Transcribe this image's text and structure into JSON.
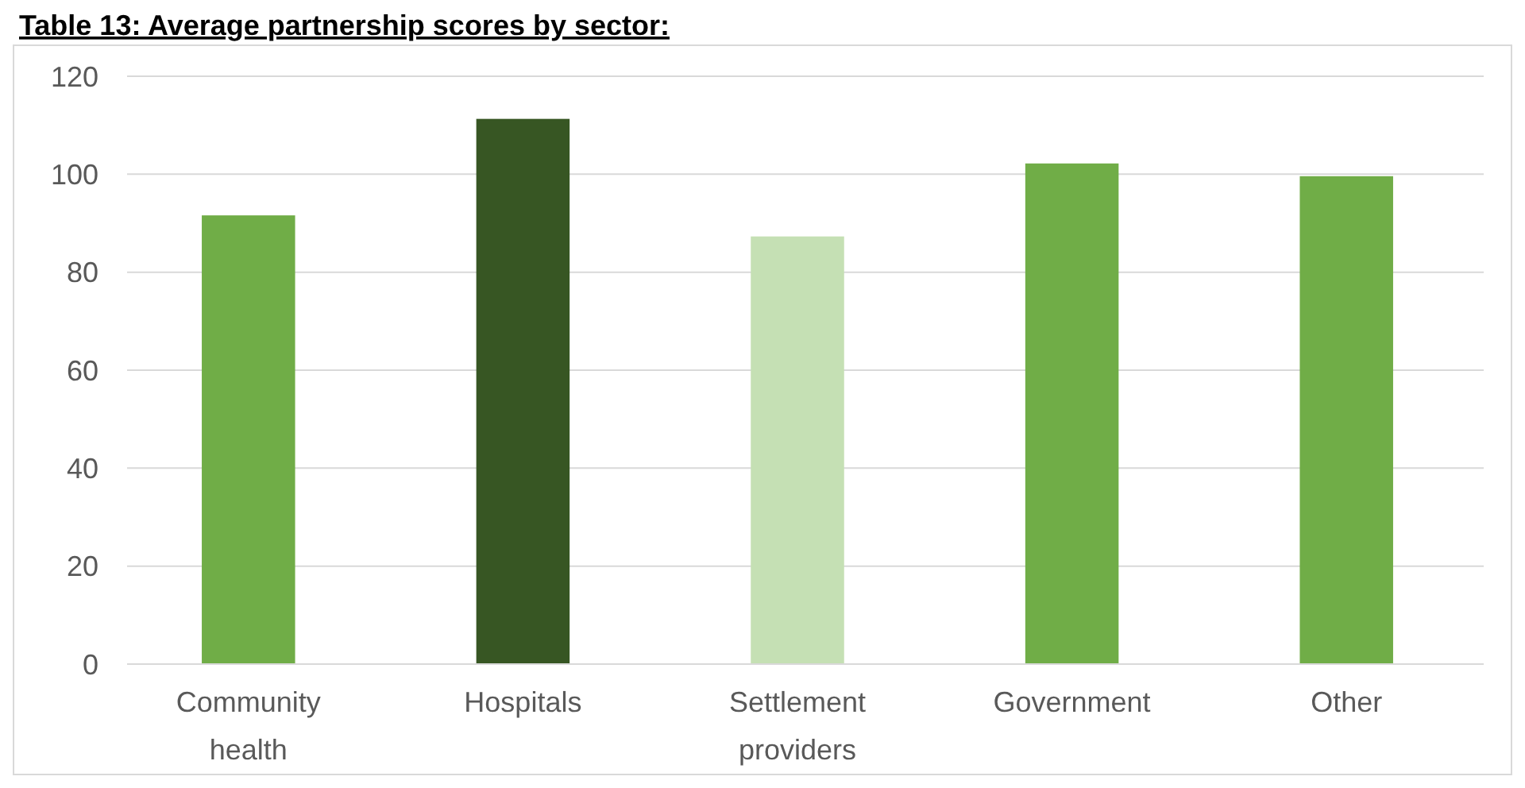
{
  "chart_data": {
    "type": "bar",
    "title": "Table 13: Average partnership scores by sector:",
    "categories": [
      "Community health",
      "Hospitals",
      "Settlement providers",
      "Government",
      "Other"
    ],
    "values": [
      91.6,
      111.3,
      87.3,
      102.2,
      99.6
    ],
    "colors": [
      "#70ad47",
      "#375623",
      "#c5e0b4",
      "#70ad47",
      "#70ad47"
    ],
    "ylim": [
      0,
      120
    ],
    "yticks": [
      0,
      20,
      40,
      60,
      80,
      100,
      120
    ],
    "grid": "y"
  }
}
